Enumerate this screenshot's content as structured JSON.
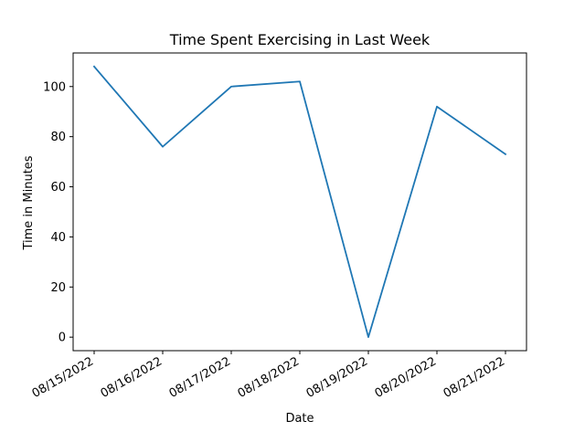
{
  "chart_data": {
    "type": "line",
    "title": "Time Spent Exercising in Last Week",
    "xlabel": "Date",
    "ylabel": "Time in Minutes",
    "categories": [
      "08/15/2022",
      "08/16/2022",
      "08/17/2022",
      "08/18/2022",
      "08/19/2022",
      "08/20/2022",
      "08/21/2022"
    ],
    "series": [
      {
        "values": [
          108,
          76,
          100,
          102,
          0,
          92,
          73
        ],
        "color": "#1f77b4"
      }
    ],
    "yticks": [
      0,
      20,
      40,
      60,
      80,
      100
    ],
    "ylim": [
      -5.4,
      113.4
    ],
    "grid": false,
    "legend": "none"
  }
}
